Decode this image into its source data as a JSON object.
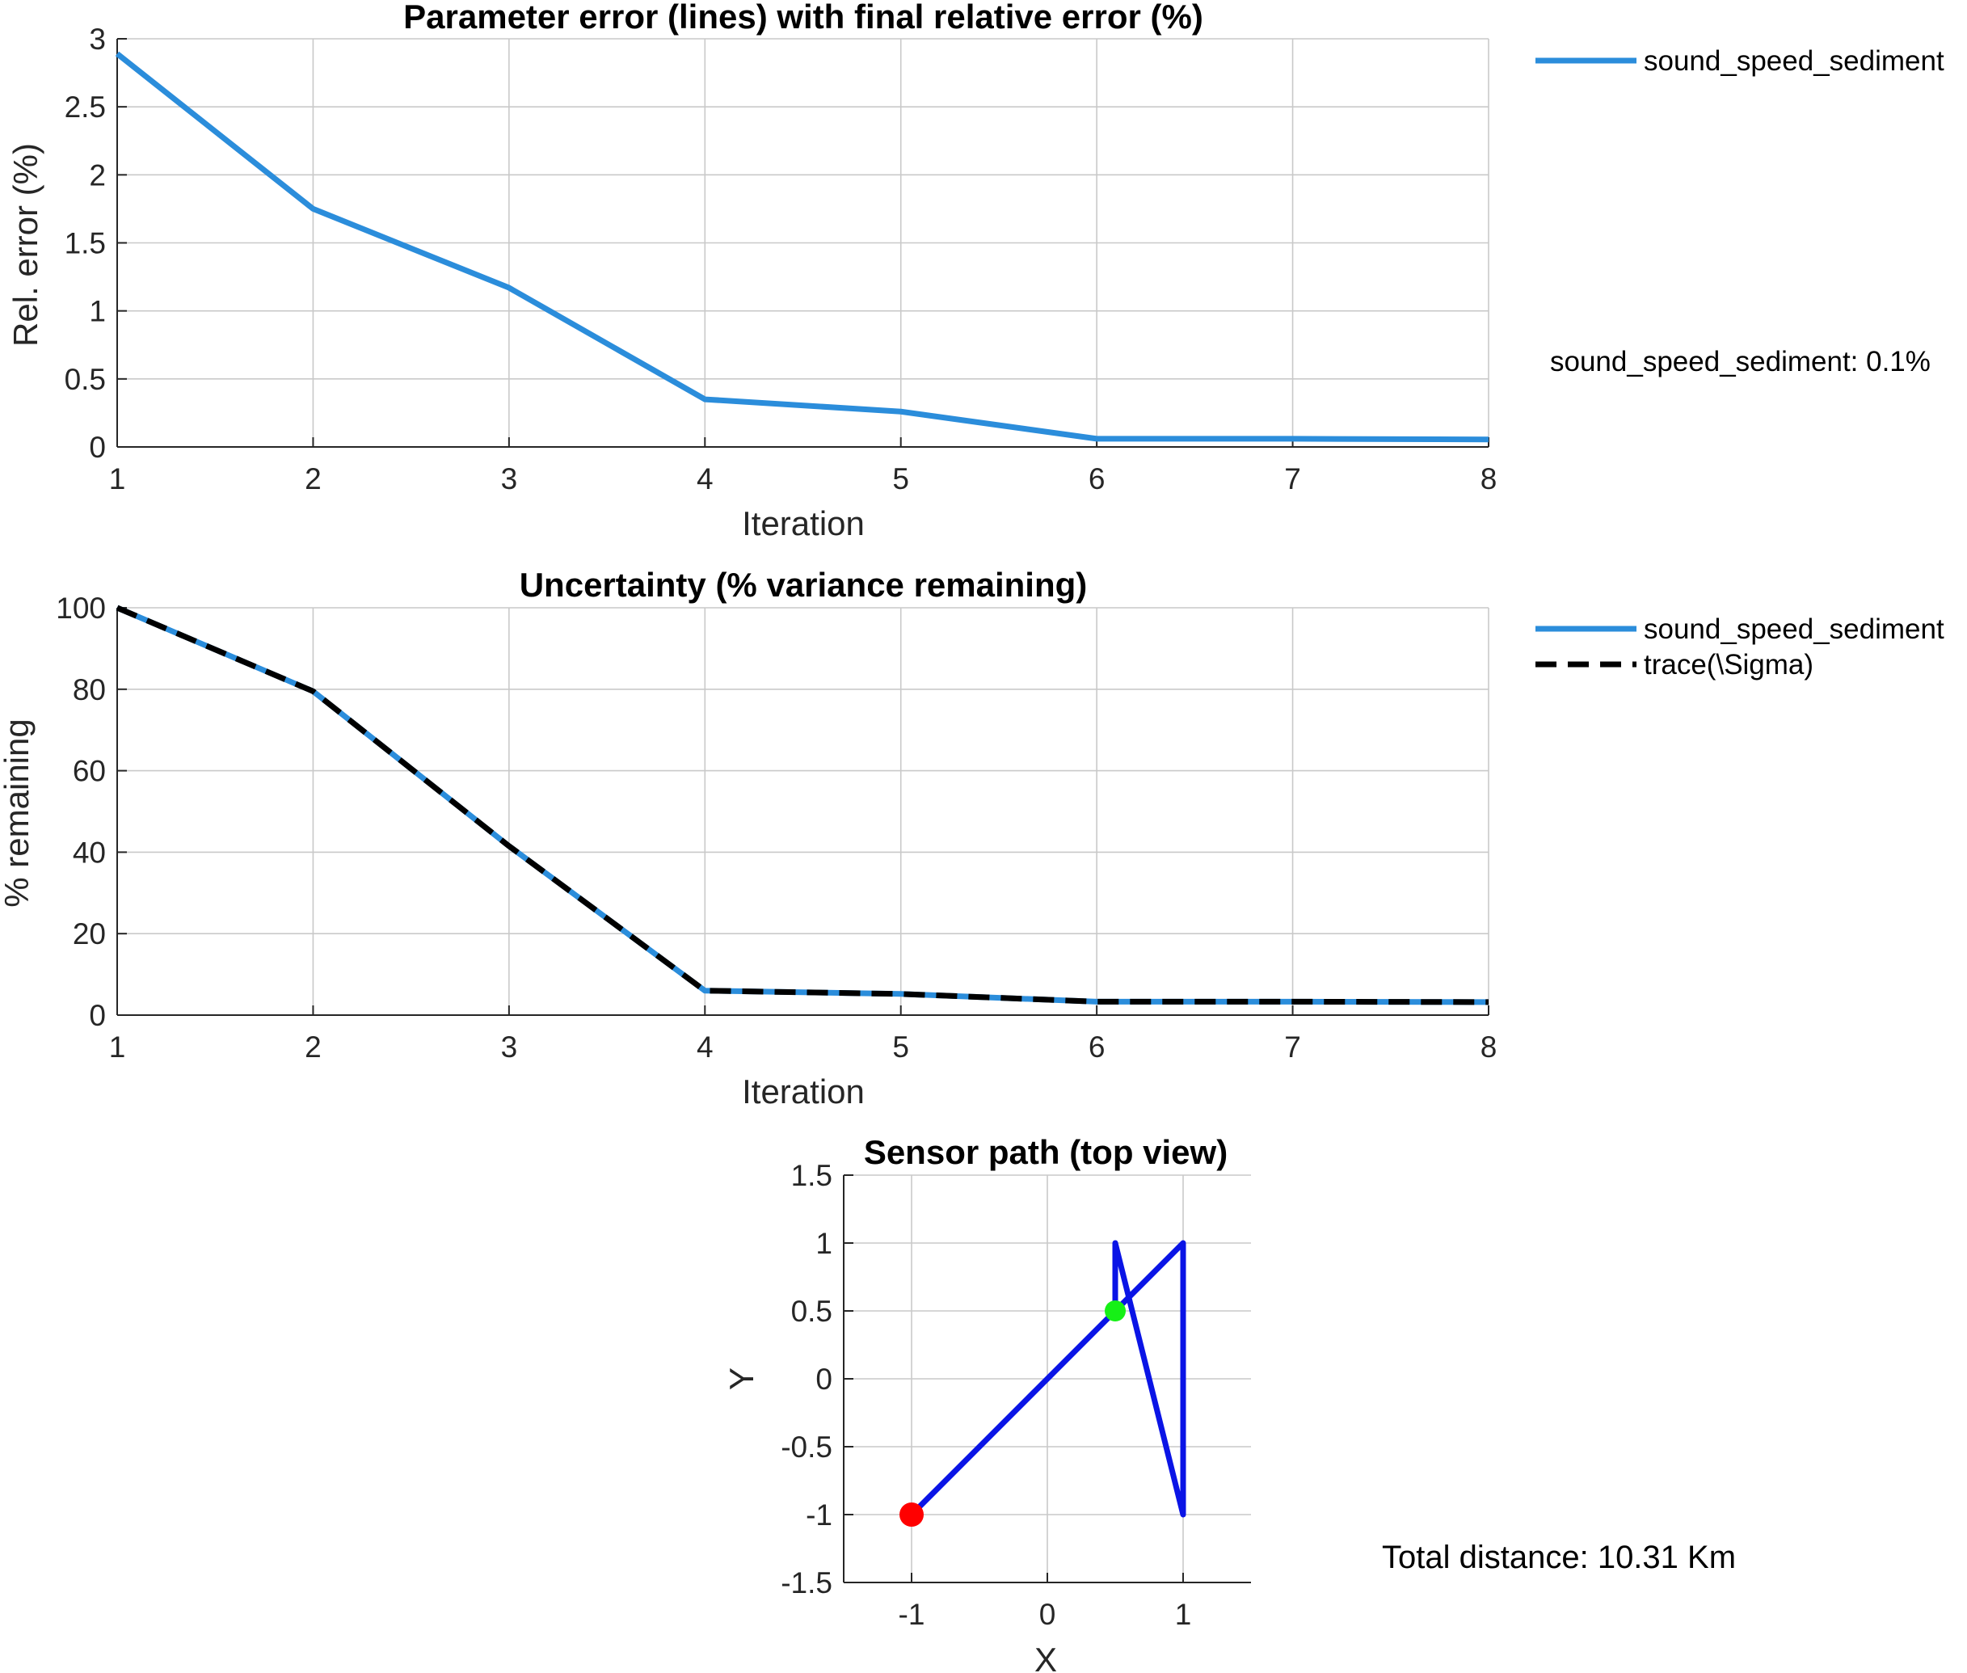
{
  "chart_data": [
    {
      "type": "line",
      "title": "Parameter error (lines) with final relative error (%)",
      "xlabel": "Iteration",
      "ylabel": "Rel. error (%)",
      "xlim": [
        1,
        8
      ],
      "ylim": [
        0,
        3
      ],
      "xticks": [
        "1",
        "2",
        "3",
        "4",
        "5",
        "6",
        "7",
        "8"
      ],
      "yticks": [
        "0",
        "0.5",
        "1",
        "1.5",
        "2",
        "2.5",
        "3"
      ],
      "grid": true,
      "legend_position": "outside-right",
      "x": [
        1,
        2,
        3,
        4,
        5,
        6,
        7,
        8
      ],
      "series": [
        {
          "name": "sound_speed_sediment",
          "color": "#2b8ddb",
          "style": "solid",
          "values": [
            2.89,
            1.75,
            1.17,
            0.35,
            0.26,
            0.06,
            0.06,
            0.055
          ]
        }
      ],
      "annotation": "sound_speed_sediment: 0.1%"
    },
    {
      "type": "line",
      "title": "Uncertainty (% variance remaining)",
      "xlabel": "Iteration",
      "ylabel": "% remaining",
      "xlim": [
        1,
        8
      ],
      "ylim": [
        0,
        100
      ],
      "xticks": [
        "1",
        "2",
        "3",
        "4",
        "5",
        "6",
        "7",
        "8"
      ],
      "yticks": [
        "0",
        "20",
        "40",
        "60",
        "80",
        "100"
      ],
      "grid": true,
      "legend_position": "outside-right",
      "x": [
        1,
        2,
        3,
        4,
        5,
        6,
        7,
        8
      ],
      "series": [
        {
          "name": "sound_speed_sediment",
          "color": "#2b8ddb",
          "style": "solid",
          "values": [
            100,
            79.5,
            41.5,
            6,
            5.2,
            3.3,
            3.3,
            3.2
          ]
        },
        {
          "name": "trace(\\Sigma)",
          "color": "#000000",
          "style": "dashed",
          "values": [
            100,
            79.5,
            41.5,
            6,
            5.2,
            3.3,
            3.3,
            3.2
          ]
        }
      ]
    },
    {
      "type": "line",
      "title": "Sensor path (top view)",
      "xlabel": "X",
      "ylabel": "Y",
      "xlim": [
        -1.5,
        1.5
      ],
      "ylim": [
        -1.5,
        1.5
      ],
      "xticks": [
        "-1",
        "0",
        "1"
      ],
      "yticks": [
        "-1.5",
        "-1",
        "-0.5",
        "0",
        "0.5",
        "1",
        "1.5"
      ],
      "grid": true,
      "path": {
        "color": "#0a14e6",
        "x": [
          -1,
          0.5,
          0.5,
          1,
          1,
          0.5
        ],
        "y": [
          -1,
          0.5,
          1,
          -1,
          1,
          0.5
        ]
      },
      "start_marker": {
        "x": -1,
        "y": -1,
        "color": "#ff0000"
      },
      "end_marker": {
        "x": 0.5,
        "y": 0.5,
        "color": "#16f016"
      },
      "annotation": "Total distance: 10.31 Km"
    }
  ]
}
